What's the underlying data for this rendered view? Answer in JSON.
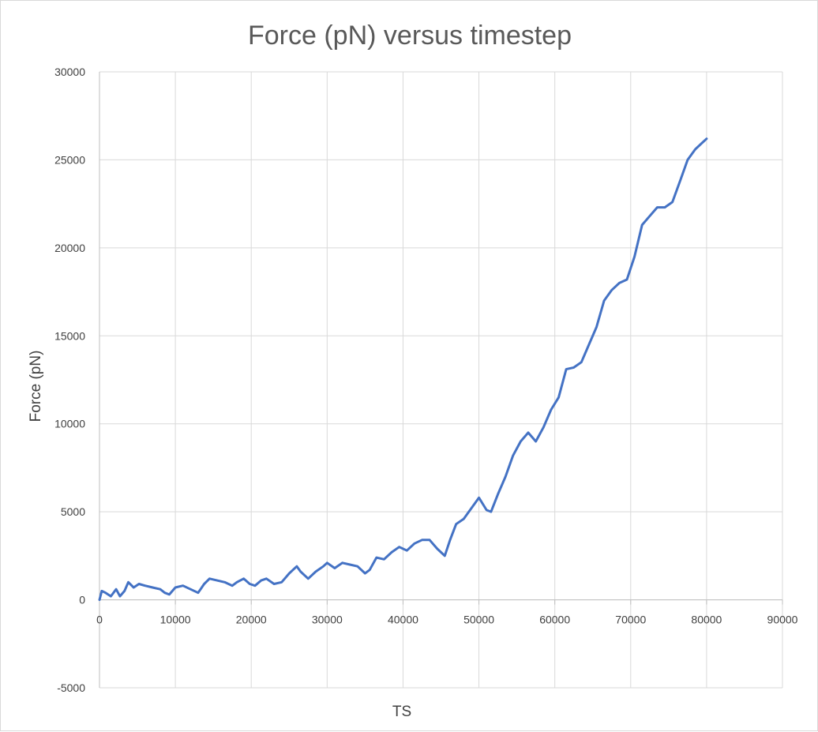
{
  "chart_data": {
    "type": "line",
    "title": "Force (pN) versus timestep",
    "xlabel": "TS",
    "ylabel": "Force (pN)",
    "xlim": [
      0,
      90000
    ],
    "ylim": [
      -5000,
      30000
    ],
    "x_ticks": [
      0,
      10000,
      20000,
      30000,
      40000,
      50000,
      60000,
      70000,
      80000,
      90000
    ],
    "y_ticks": [
      -5000,
      0,
      5000,
      10000,
      15000,
      20000,
      25000,
      30000
    ],
    "grid": true,
    "legend": "none",
    "series": [
      {
        "color": "#4472c4",
        "x": [
          0,
          300,
          800,
          1500,
          2200,
          2700,
          3300,
          3800,
          4500,
          5200,
          6000,
          7000,
          8000,
          8600,
          9200,
          10000,
          11000,
          12000,
          13000,
          13800,
          14500,
          15500,
          16500,
          17500,
          18100,
          19000,
          19800,
          20500,
          21300,
          22000,
          23000,
          24000,
          25000,
          26000,
          26500,
          27500,
          28500,
          29500,
          30000,
          31000,
          32000,
          33000,
          34000,
          35000,
          35600,
          36500,
          37500,
          38500,
          39500,
          40500,
          41500,
          42500,
          43500,
          44500,
          45500,
          46200,
          47000,
          48000,
          49000,
          50000,
          51000,
          51600,
          52500,
          53500,
          54500,
          55500,
          56500,
          57500,
          58500,
          59500,
          60500,
          61500,
          62500,
          63500,
          64500,
          65500,
          66500,
          67500,
          68500,
          69500,
          70500,
          71500,
          72500,
          73500,
          74500,
          75500,
          76500,
          77500,
          78500,
          79500,
          80000
        ],
        "values": [
          0,
          500,
          400,
          200,
          600,
          200,
          500,
          1000,
          700,
          900,
          800,
          700,
          600,
          400,
          300,
          700,
          800,
          600,
          400,
          900,
          1200,
          1100,
          1000,
          800,
          1000,
          1200,
          900,
          800,
          1100,
          1200,
          900,
          1000,
          1500,
          1900,
          1600,
          1200,
          1600,
          1900,
          2100,
          1800,
          2100,
          2000,
          1900,
          1500,
          1700,
          2400,
          2300,
          2700,
          3000,
          2800,
          3200,
          3400,
          3400,
          2900,
          2500,
          3400,
          4300,
          4600,
          5200,
          5800,
          5100,
          5000,
          6000,
          7000,
          8200,
          9000,
          9500,
          9000,
          9800,
          10800,
          11500,
          13100,
          13200,
          13500,
          14500,
          15500,
          17000,
          17600,
          18000,
          18200,
          19500,
          21300,
          21800,
          22300,
          22300,
          22600,
          23800,
          25000,
          25600,
          26000,
          26200
        ]
      }
    ]
  }
}
